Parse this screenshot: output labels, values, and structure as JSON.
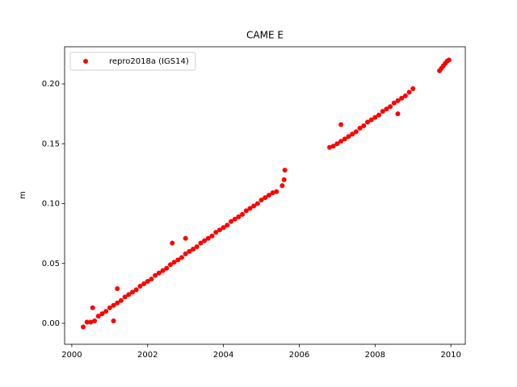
{
  "chart_data": {
    "type": "scatter",
    "title": "CAME E",
    "y_label": "m",
    "x": [
      2000.3,
      2000.4,
      2000.5,
      2000.6,
      2000.7,
      2000.8,
      2000.9,
      2001.0,
      2001.1,
      2001.2,
      2001.3,
      2001.4,
      2001.5,
      2001.6,
      2001.7,
      2001.8,
      2001.9,
      2002.0,
      2002.1,
      2002.2,
      2002.3,
      2002.4,
      2002.5,
      2002.6,
      2002.7,
      2002.8,
      2002.9,
      2003.0,
      2003.1,
      2003.2,
      2003.3,
      2003.4,
      2003.5,
      2003.6,
      2003.7,
      2003.8,
      2003.9,
      2004.0,
      2004.1,
      2004.2,
      2004.3,
      2004.4,
      2004.5,
      2004.6,
      2004.7,
      2004.8,
      2004.9,
      2005.0,
      2005.1,
      2005.2,
      2005.3,
      2005.4,
      2005.55,
      2005.6,
      2005.62,
      2000.55,
      2001.1,
      2001.2,
      2002.65,
      2003.0,
      2006.8,
      2006.9,
      2007.0,
      2007.1,
      2007.2,
      2007.3,
      2007.4,
      2007.5,
      2007.6,
      2007.7,
      2007.8,
      2007.9,
      2008.0,
      2008.1,
      2008.2,
      2008.3,
      2008.4,
      2008.5,
      2008.6,
      2008.7,
      2008.8,
      2008.9,
      2009.0,
      2007.1,
      2008.6,
      2009.7,
      2009.75,
      2009.8,
      2009.85,
      2009.9,
      2009.95
    ],
    "series": [
      {
        "name": "repro2018a (IGS14)",
        "color": "#ff0000",
        "values": [
          -0.003,
          0.001,
          0.001,
          0.002,
          0.006,
          0.008,
          0.01,
          0.013,
          0.015,
          0.017,
          0.019,
          0.022,
          0.024,
          0.026,
          0.028,
          0.031,
          0.033,
          0.035,
          0.037,
          0.04,
          0.042,
          0.044,
          0.046,
          0.049,
          0.051,
          0.053,
          0.055,
          0.058,
          0.06,
          0.062,
          0.064,
          0.067,
          0.069,
          0.071,
          0.073,
          0.076,
          0.078,
          0.08,
          0.082,
          0.085,
          0.087,
          0.089,
          0.091,
          0.094,
          0.096,
          0.098,
          0.1,
          0.103,
          0.105,
          0.107,
          0.109,
          0.11,
          0.115,
          0.12,
          0.128,
          0.013,
          0.002,
          0.029,
          0.067,
          0.071,
          0.147,
          0.148,
          0.15,
          0.152,
          0.154,
          0.156,
          0.158,
          0.16,
          0.163,
          0.165,
          0.168,
          0.17,
          0.172,
          0.174,
          0.177,
          0.179,
          0.181,
          0.184,
          0.186,
          0.188,
          0.19,
          0.193,
          0.196,
          0.166,
          0.175,
          0.211,
          0.213,
          0.215,
          0.217,
          0.219,
          0.22
        ]
      }
    ],
    "xlim": [
      1999.81,
      2010.38
    ],
    "xticks": [
      2000,
      2002,
      2004,
      2006,
      2008,
      2010
    ],
    "ylim": [
      -0.0175,
      0.231
    ],
    "yticks": [
      {
        "value": 0,
        "label": "0.00"
      },
      0.05,
      {
        "value": 0.1,
        "label": "0.10"
      },
      0.15,
      {
        "value": 0.2,
        "label": "0.20"
      }
    ],
    "legend": "upper left",
    "grid": false
  }
}
